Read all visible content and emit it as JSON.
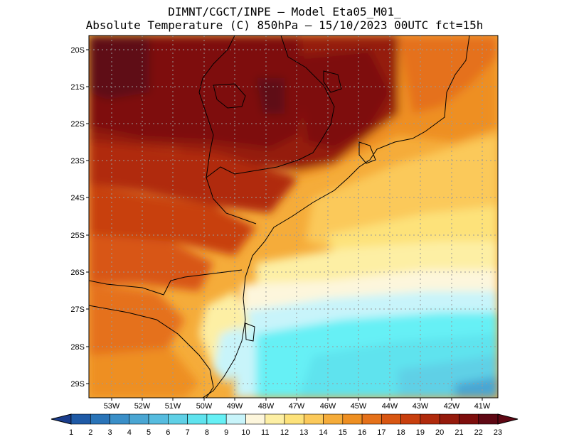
{
  "title_line1": "DIMNT/CGCT/INPE –  Model Eta05_M01_",
  "title_line2": "Absolute Temperature (C) 850hPa –  15/10/2023 00UTC fct=15h",
  "lat_labels": [
    "20S",
    "21S",
    "22S",
    "23S",
    "24S",
    "25S",
    "26S",
    "27S",
    "28S",
    "29S"
  ],
  "lon_labels": [
    "53W",
    "52W",
    "51W",
    "50W",
    "49W",
    "48W",
    "47W",
    "46W",
    "45W",
    "44W",
    "43W",
    "42W",
    "41W"
  ],
  "colorbar": {
    "labels": [
      "1",
      "2",
      "3",
      "4",
      "5",
      "6",
      "7",
      "8",
      "9",
      "10",
      "11",
      "12",
      "13",
      "14",
      "15",
      "16",
      "17",
      "18",
      "19",
      "20",
      "21",
      "22",
      "23"
    ],
    "colors": [
      "#1a3d8c",
      "#1f5aa6",
      "#2a74b8",
      "#3a8fc8",
      "#4aa6d3",
      "#56bcdf",
      "#5fd0e6",
      "#5fe3ee",
      "#66f0f5",
      "#c8f4fa",
      "#fdf6dc",
      "#fdefa4",
      "#fde27a",
      "#fbc95a",
      "#f5ac3a",
      "#ee8f22",
      "#e5711a",
      "#d85612",
      "#c83f0e",
      "#b02a0c",
      "#951a0c",
      "#7e0e0d",
      "#5f0814"
    ]
  }
}
